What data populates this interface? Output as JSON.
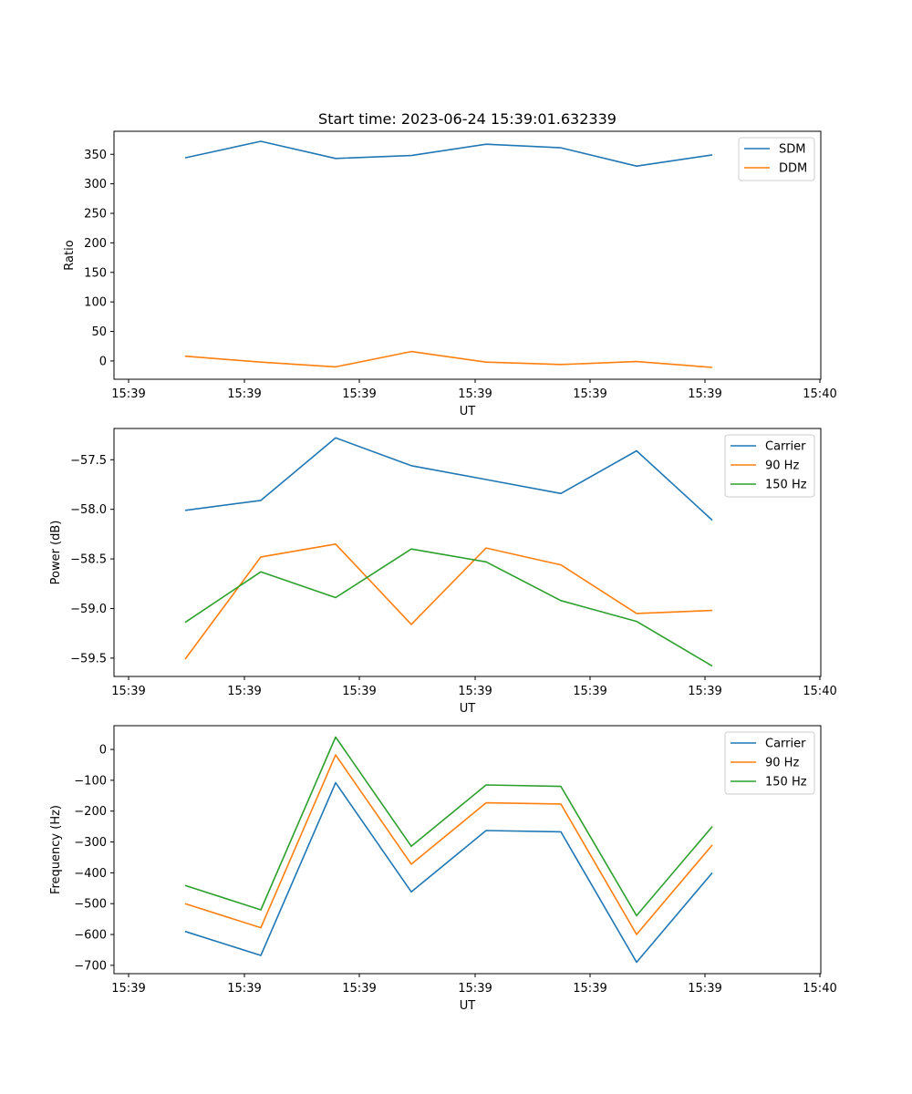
{
  "figure_title": "Start time: 2023-06-24 15:39:01.632339",
  "chart_data": [
    {
      "type": "line",
      "title": "Start time: 2023-06-24 15:39:01.632339",
      "xlabel": "UT",
      "ylabel": "Ratio",
      "x_tick_labels": [
        "15:39",
        "15:39",
        "15:39",
        "15:39",
        "15:39",
        "15:39",
        "15:40"
      ],
      "y_ticks": [
        0,
        50,
        100,
        150,
        200,
        250,
        300,
        350
      ],
      "ylim": [
        -31,
        389
      ],
      "legend_position": "top-right",
      "grid": false,
      "series": [
        {
          "name": "SDM",
          "color": "#1f77b4",
          "values": [
            344,
            372,
            343,
            348,
            367,
            361,
            330,
            349
          ]
        },
        {
          "name": "DDM",
          "color": "#ff7f0e",
          "values": [
            8,
            -2,
            -10,
            16,
            -2,
            -6,
            -1,
            -11
          ]
        }
      ]
    },
    {
      "type": "line",
      "xlabel": "UT",
      "ylabel": "Power (dB)",
      "x_tick_labels": [
        "15:39",
        "15:39",
        "15:39",
        "15:39",
        "15:39",
        "15:39",
        "15:40"
      ],
      "y_ticks": [
        -59.5,
        -59.0,
        -58.5,
        -58.0,
        -57.5
      ],
      "y_tick_labels": [
        "−59.5",
        "−59.0",
        "−58.5",
        "−58.0",
        "−57.5"
      ],
      "ylim": [
        -59.685,
        -57.185
      ],
      "legend_position": "top-right",
      "grid": false,
      "series": [
        {
          "name": "Carrier",
          "color": "#1f77b4",
          "values": [
            -58.01,
            -57.91,
            -57.28,
            -57.56,
            -57.7,
            -57.84,
            -57.41,
            -58.11
          ]
        },
        {
          "name": "90 Hz",
          "color": "#ff7f0e",
          "values": [
            -59.51,
            -58.48,
            -58.35,
            -59.16,
            -58.39,
            -58.56,
            -59.05,
            -59.02
          ]
        },
        {
          "name": "150 Hz",
          "color": "#2ca02c",
          "values": [
            -59.14,
            -58.63,
            -58.89,
            -58.4,
            -58.53,
            -58.92,
            -59.13,
            -59.58
          ]
        }
      ]
    },
    {
      "type": "line",
      "xlabel": "UT",
      "ylabel": "Frequency (Hz)",
      "x_tick_labels": [
        "15:39",
        "15:39",
        "15:39",
        "15:39",
        "15:39",
        "15:39",
        "15:40"
      ],
      "y_ticks": [
        -700,
        -600,
        -500,
        -400,
        -300,
        -200,
        -100,
        0
      ],
      "y_tick_labels": [
        "−700",
        "−600",
        "−500",
        "−400",
        "−300",
        "−200",
        "−100",
        "0"
      ],
      "ylim": [
        -727,
        77
      ],
      "legend_position": "top-right",
      "grid": false,
      "series": [
        {
          "name": "Carrier",
          "color": "#1f77b4",
          "values": [
            -590,
            -668,
            -108,
            -462,
            -263,
            -267,
            -690,
            -400
          ]
        },
        {
          "name": "90 Hz",
          "color": "#ff7f0e",
          "values": [
            -500,
            -578,
            -18,
            -372,
            -173,
            -177,
            -600,
            -310
          ]
        },
        {
          "name": "150 Hz",
          "color": "#2ca02c",
          "values": [
            -441,
            -520,
            40,
            -314,
            -115,
            -120,
            -539,
            -250
          ]
        }
      ]
    }
  ]
}
